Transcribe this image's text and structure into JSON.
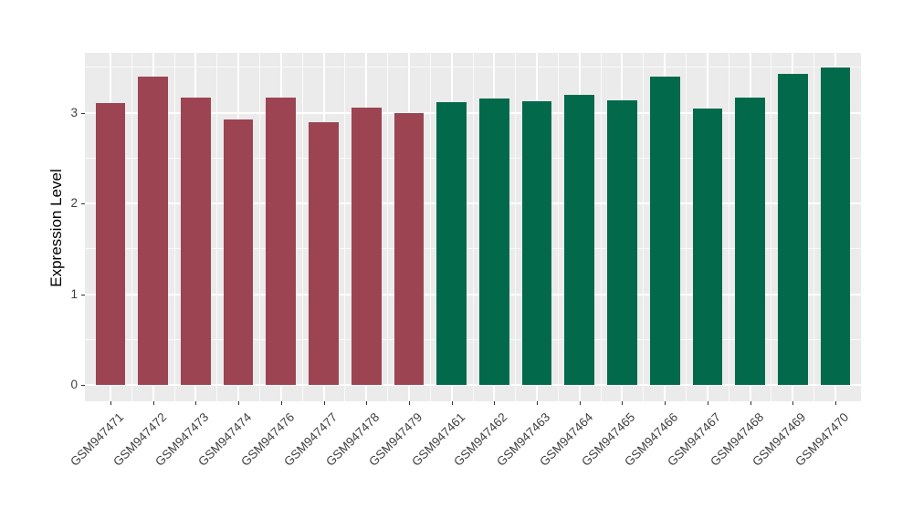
{
  "figure": {
    "background": "#FFFFFF",
    "panel_background": "#EBEBEB",
    "grid_color": "#FFFFFF",
    "tick_color": "#333333",
    "axis_text_color": "#404040",
    "axis_title_color": "#000000"
  },
  "chart_data": {
    "type": "bar",
    "title": "",
    "xlabel": "",
    "ylabel": "Expression Level",
    "categories": [
      "GSM947471",
      "GSM947472",
      "GSM947473",
      "GSM947474",
      "GSM947476",
      "GSM947477",
      "GSM947478",
      "GSM947479",
      "GSM947461",
      "GSM947462",
      "GSM947463",
      "GSM947464",
      "GSM947465",
      "GSM947466",
      "GSM947467",
      "GSM947468",
      "GSM947469",
      "GSM947470"
    ],
    "values": [
      3.11,
      3.4,
      3.17,
      2.93,
      3.17,
      2.9,
      3.06,
      3.0,
      3.12,
      3.16,
      3.13,
      3.2,
      3.14,
      3.4,
      3.05,
      3.17,
      3.43,
      3.5
    ],
    "bar_colors": [
      "#9C4452",
      "#9C4452",
      "#9C4452",
      "#9C4452",
      "#9C4452",
      "#9C4452",
      "#9C4452",
      "#9C4452",
      "#026A4B",
      "#026A4B",
      "#026A4B",
      "#026A4B",
      "#026A4B",
      "#026A4B",
      "#026A4B",
      "#026A4B",
      "#026A4B",
      "#026A4B"
    ],
    "yticks": [
      0,
      1,
      2,
      3
    ],
    "yticks_minor": [
      0.5,
      1.5,
      2.5,
      3.5
    ],
    "ylim": [
      -0.18,
      3.66
    ],
    "bar_width_ratio": 0.7,
    "grid": true,
    "legend": "none"
  }
}
